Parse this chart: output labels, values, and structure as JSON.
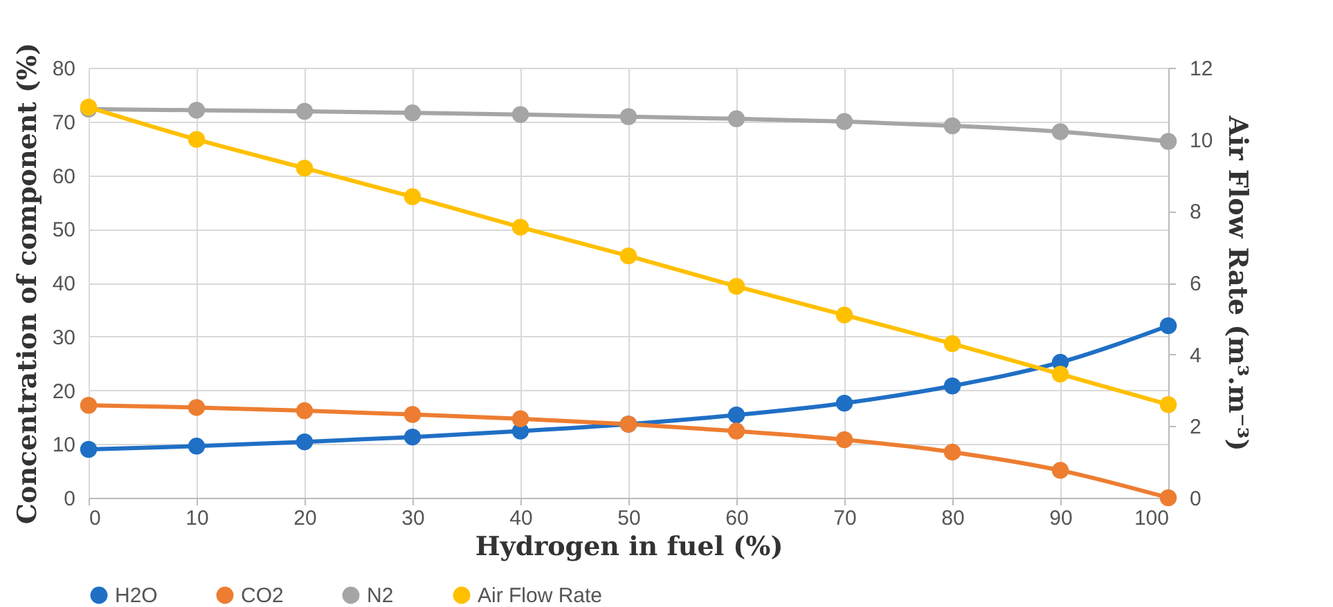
{
  "chart_data": {
    "type": "line",
    "xlabel": "Hydrogen in fuel (%)",
    "ylabel": "Concentration of component (%)",
    "y2label": "Air Flow Rate (m³.m⁻³)",
    "x": [
      0,
      10,
      20,
      30,
      40,
      50,
      60,
      70,
      80,
      90,
      100
    ],
    "series": [
      {
        "name": "H2O",
        "color": "#1f6fc5",
        "values": [
          9.0,
          9.6,
          10.4,
          11.3,
          12.4,
          13.7,
          15.4,
          17.6,
          20.8,
          25.2,
          32.0
        ]
      },
      {
        "name": "CO2",
        "color": "#ed7d31",
        "values": [
          17.2,
          16.8,
          16.2,
          15.5,
          14.7,
          13.7,
          12.4,
          10.8,
          8.5,
          5.1,
          0
        ]
      },
      {
        "name": "N2",
        "color": "#a5a5a5",
        "values": [
          72.3,
          72.1,
          71.9,
          71.6,
          71.3,
          70.9,
          70.5,
          70.0,
          69.2,
          68.1,
          66.3
        ]
      },
      {
        "name": "Air Flow Rate",
        "color": "#ffc000",
        "axis": "y2",
        "values": [
          10.9,
          10.0,
          9.2,
          8.4,
          7.55,
          6.75,
          5.9,
          5.1,
          4.3,
          3.45,
          2.6
        ]
      }
    ],
    "xlim": [
      0,
      100
    ],
    "xticks": [
      0,
      10,
      20,
      30,
      40,
      50,
      60,
      70,
      80,
      90,
      100
    ],
    "ylim": [
      0,
      80
    ],
    "yticks": [
      0,
      10,
      20,
      30,
      40,
      50,
      60,
      70,
      80
    ],
    "y2lim": [
      0,
      12
    ],
    "y2ticks": [
      0,
      2,
      4,
      6,
      8,
      10,
      12
    ],
    "grid": true,
    "legend": "bottom",
    "marker": "circle",
    "line_style": "solid"
  }
}
